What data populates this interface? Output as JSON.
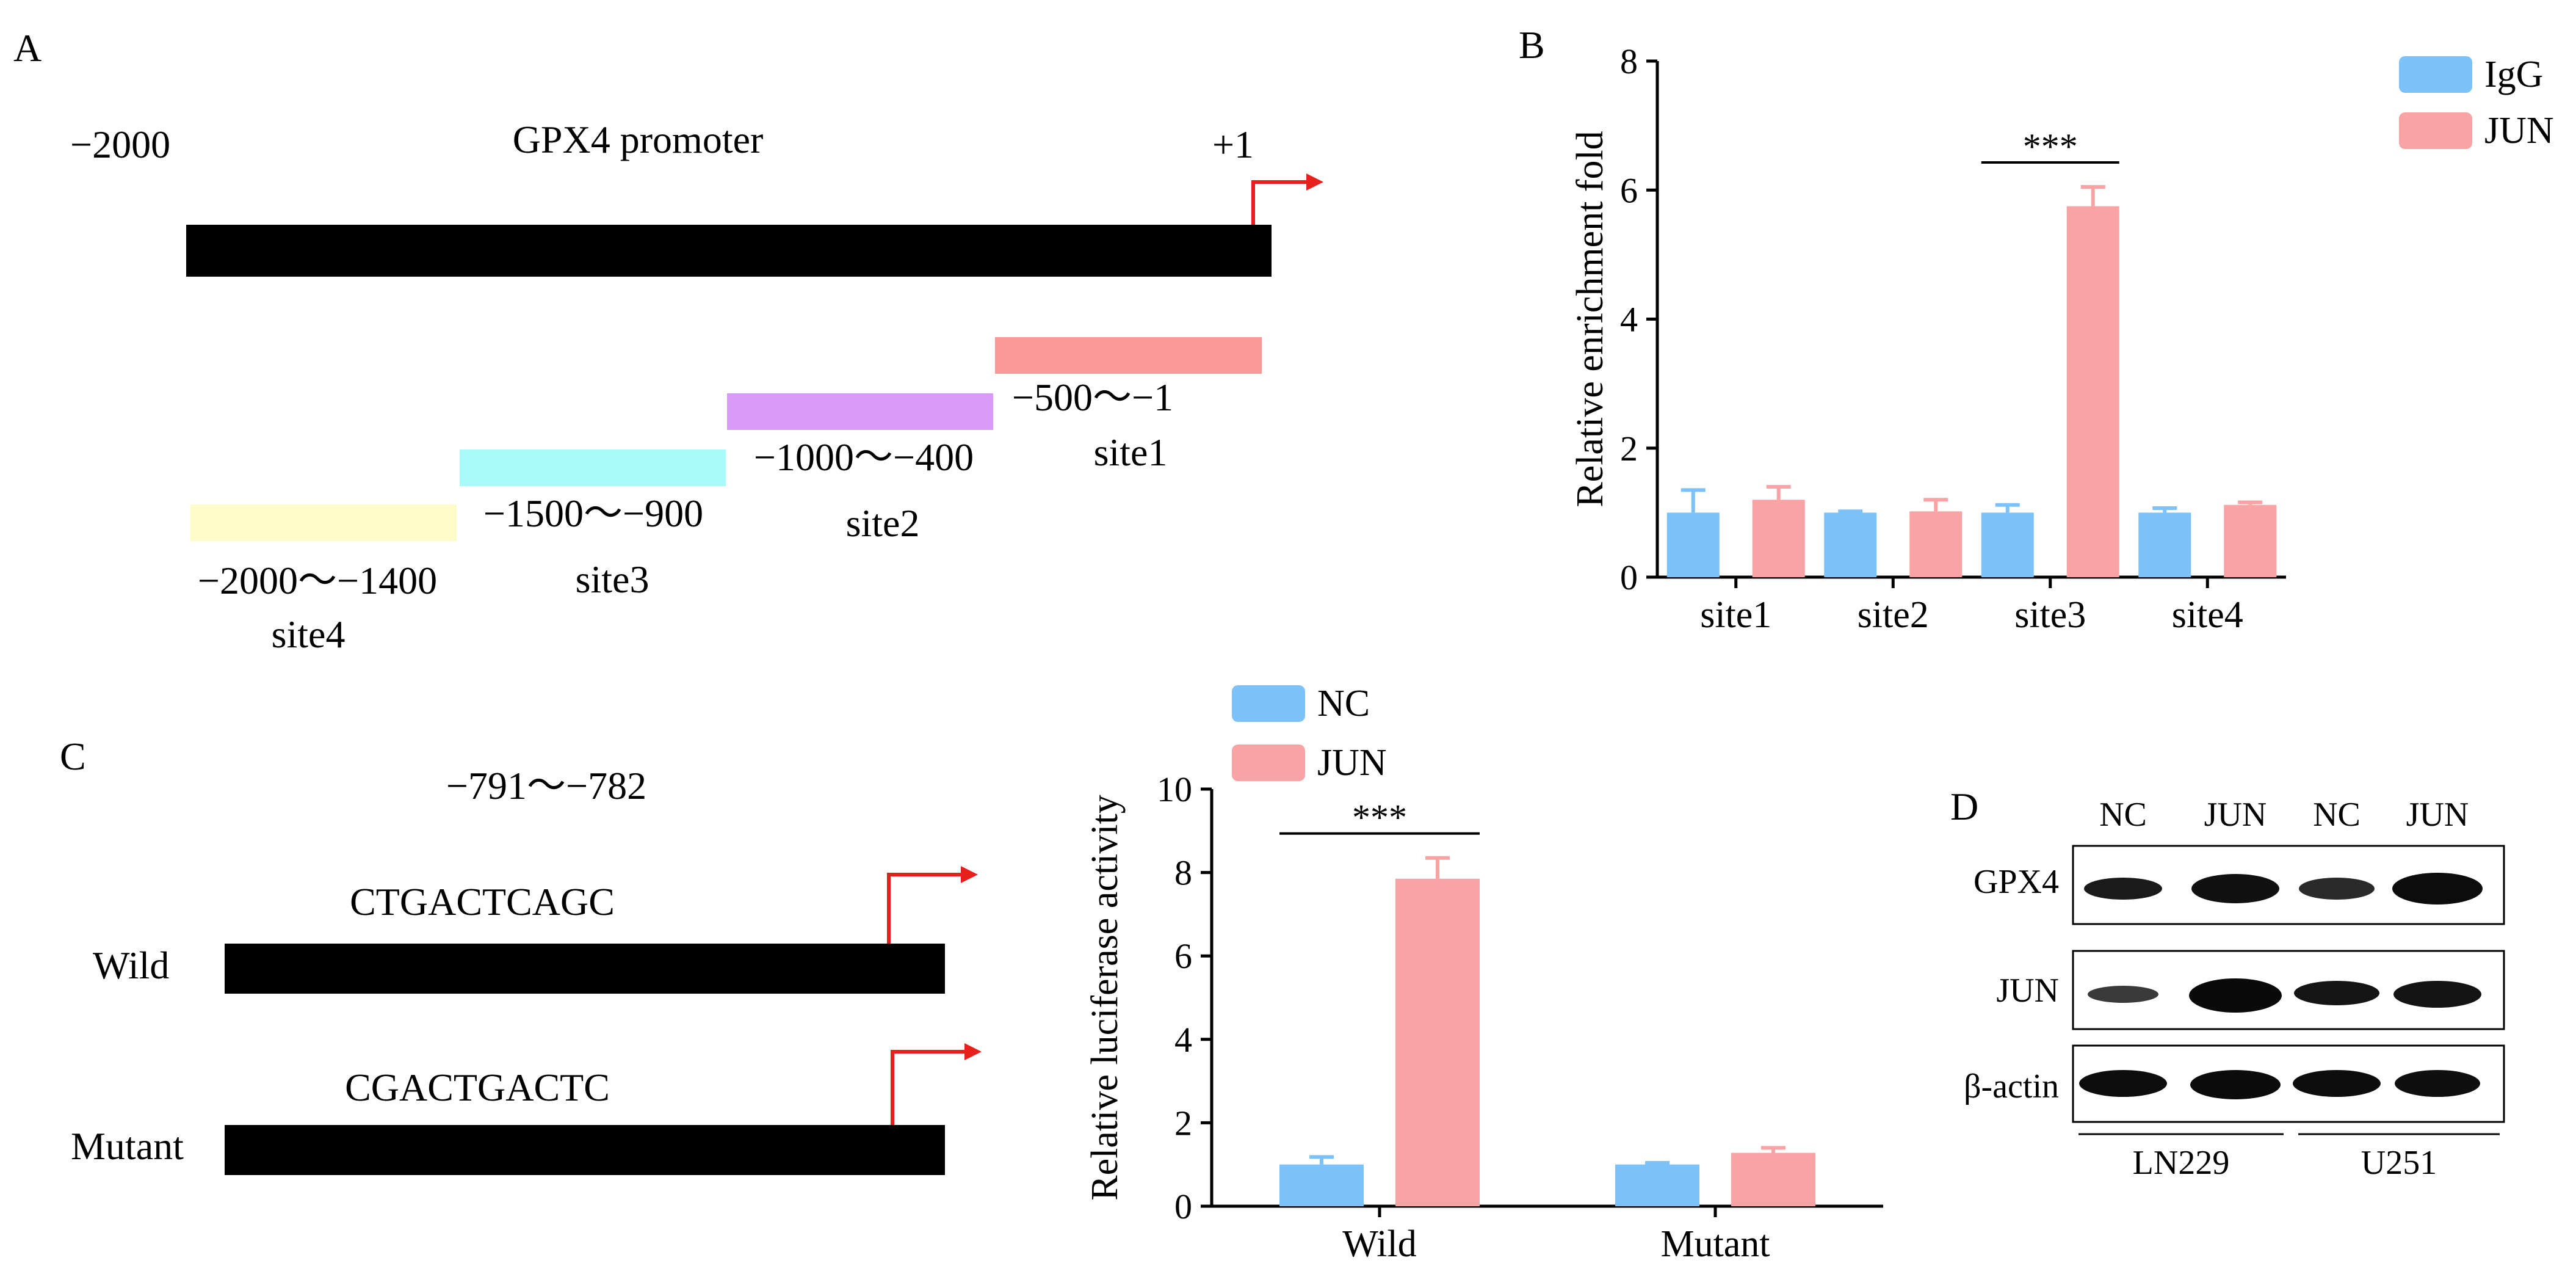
{
  "panelA": {
    "label": "A",
    "title": "GPX4 promoter",
    "start_label": "−2000",
    "tss_label": "+1",
    "sites": [
      {
        "name": "site1",
        "range": "−500～−1",
        "color": "#f99a98"
      },
      {
        "name": "site2",
        "range": "−1000～−400",
        "color": "#d99af8"
      },
      {
        "name": "site3",
        "range": "−1500～−900",
        "color": "#a8fafb"
      },
      {
        "name": "site4",
        "range": "−2000～−1400",
        "color": "#fdfbc8"
      }
    ]
  },
  "panelC": {
    "label": "C",
    "region": "−791～−782",
    "constructs": [
      {
        "name": "Wild",
        "sequence": "CTGACTCAGC"
      },
      {
        "name": "Mutant",
        "sequence": "CGACTGACTC"
      }
    ]
  },
  "panelD": {
    "label": "D",
    "lanes": [
      "NC",
      "JUN",
      "NC",
      "JUN"
    ],
    "rows": [
      "GPX4",
      "JUN",
      "β-actin"
    ],
    "cell_lines": [
      "LN229",
      "U251"
    ]
  },
  "chart_data": [
    {
      "panel": "B",
      "type": "bar",
      "ylabel": "Relative enrichment fold",
      "xlabel": "",
      "ylim": [
        0,
        8
      ],
      "yticks": [
        0,
        2,
        4,
        6,
        8
      ],
      "categories": [
        "site1",
        "site2",
        "site3",
        "site4"
      ],
      "series": [
        {
          "name": "IgG",
          "color": "#7cc1f7",
          "values": [
            1.0,
            1.0,
            1.0,
            1.0
          ],
          "errors": [
            0.35,
            0.02,
            0.12,
            0.07
          ]
        },
        {
          "name": "JUN",
          "color": "#f9a3a4",
          "values": [
            1.2,
            1.02,
            5.75,
            1.12
          ],
          "errors": [
            0.2,
            0.18,
            0.3,
            0.04
          ]
        }
      ],
      "annotations": [
        {
          "category": "site3",
          "text": "***"
        }
      ],
      "legend": "top-right"
    },
    {
      "panel": "C",
      "type": "bar",
      "ylabel": "Relative luciferase activity",
      "xlabel": "",
      "ylim": [
        0,
        10
      ],
      "yticks": [
        0,
        2,
        4,
        6,
        8,
        10
      ],
      "categories": [
        "Wild",
        "Mutant"
      ],
      "series": [
        {
          "name": "NC",
          "color": "#7cc1f7",
          "values": [
            1.0,
            1.0
          ],
          "errors": [
            0.18,
            0.04
          ]
        },
        {
          "name": "JUN",
          "color": "#f9a3a4",
          "values": [
            7.85,
            1.28
          ],
          "errors": [
            0.5,
            0.12
          ]
        }
      ],
      "annotations": [
        {
          "category": "Wild",
          "text": "***"
        }
      ],
      "legend": "top-left"
    }
  ]
}
